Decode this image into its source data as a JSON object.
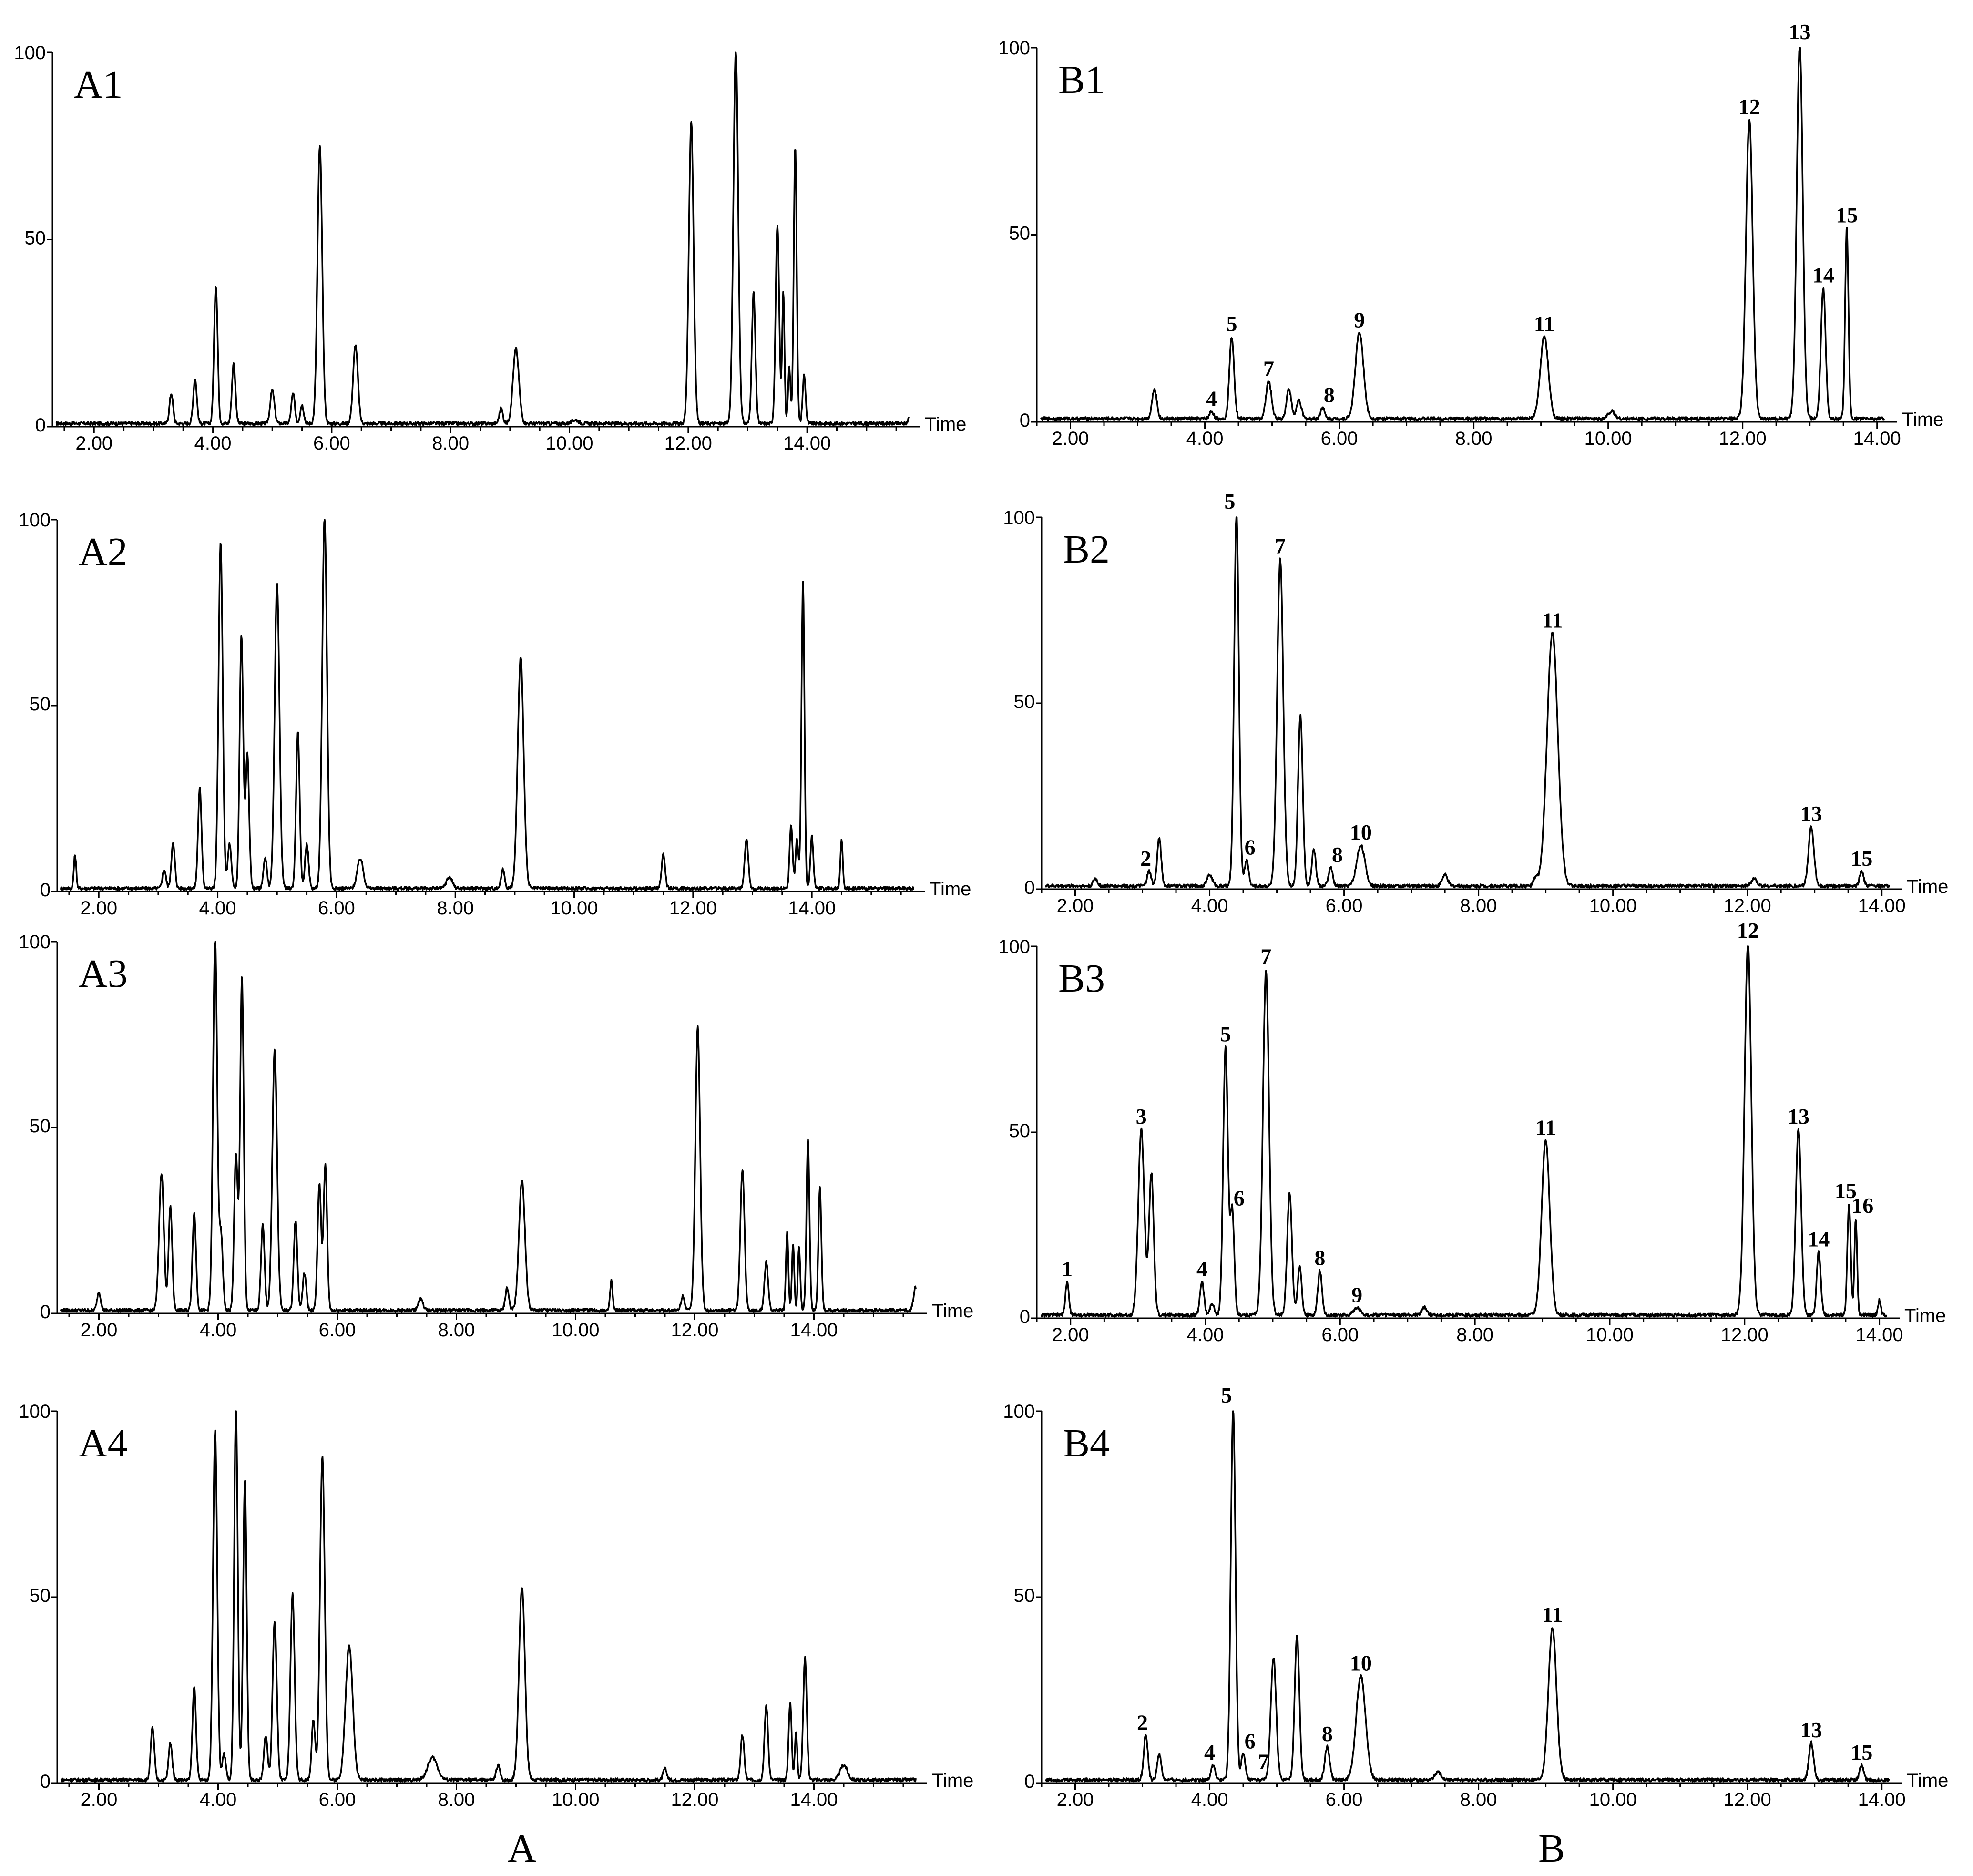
{
  "chart_data": [
    {
      "id": "A1",
      "type": "line",
      "title": "A1",
      "xlabel": "Time",
      "xlim": [
        1.3,
        15.9
      ],
      "ylim": [
        0,
        100
      ],
      "xticks": [
        "2.00",
        "4.00",
        "6.00",
        "8.00",
        "10.00",
        "12.00",
        "14.00"
      ],
      "yticks": [
        "0",
        "50",
        "100"
      ],
      "peaks": [
        [
          3.3,
          8,
          0.03
        ],
        [
          3.7,
          12,
          0.03
        ],
        [
          4.05,
          37,
          0.03
        ],
        [
          4.35,
          16,
          0.03
        ],
        [
          5.0,
          9,
          0.035
        ],
        [
          5.35,
          8,
          0.03
        ],
        [
          5.5,
          5,
          0.03
        ],
        [
          5.8,
          74,
          0.04
        ],
        [
          6.4,
          21,
          0.04
        ],
        [
          8.85,
          4,
          0.03
        ],
        [
          9.1,
          20,
          0.05
        ],
        [
          10.1,
          1,
          0.05
        ],
        [
          12.05,
          81,
          0.04
        ],
        [
          12.8,
          100,
          0.04
        ],
        [
          13.1,
          35,
          0.03
        ],
        [
          13.5,
          53,
          0.03
        ],
        [
          13.6,
          35,
          0.02
        ],
        [
          13.7,
          15,
          0.02
        ],
        [
          13.8,
          74,
          0.025
        ],
        [
          13.95,
          13,
          0.025
        ],
        [
          15.75,
          4,
          0.03
        ]
      ],
      "peak_labels": []
    },
    {
      "id": "A2",
      "type": "line",
      "title": "A2",
      "xlabel": "Time",
      "xlim": [
        1.3,
        15.9
      ],
      "ylim": [
        0,
        100
      ],
      "xticks": [
        "2.00",
        "4.00",
        "6.00",
        "8.00",
        "10.00",
        "12.00",
        "14.00"
      ],
      "yticks": [
        "0",
        "50",
        "100"
      ],
      "peaks": [
        [
          1.6,
          9,
          0.02
        ],
        [
          3.1,
          5,
          0.03
        ],
        [
          3.25,
          12,
          0.03
        ],
        [
          3.7,
          27,
          0.03
        ],
        [
          4.05,
          93,
          0.035
        ],
        [
          4.2,
          12,
          0.03
        ],
        [
          4.4,
          68,
          0.03
        ],
        [
          4.5,
          36,
          0.03
        ],
        [
          4.8,
          8,
          0.03
        ],
        [
          5.0,
          82,
          0.04
        ],
        [
          5.35,
          42,
          0.03
        ],
        [
          5.5,
          12,
          0.03
        ],
        [
          5.8,
          100,
          0.04
        ],
        [
          6.4,
          8,
          0.05
        ],
        [
          7.9,
          3,
          0.05
        ],
        [
          8.8,
          5,
          0.03
        ],
        [
          9.1,
          62,
          0.05
        ],
        [
          11.5,
          9,
          0.03
        ],
        [
          12.9,
          13,
          0.03
        ],
        [
          13.65,
          17,
          0.025
        ],
        [
          13.75,
          13,
          0.025
        ],
        [
          13.85,
          83,
          0.025
        ],
        [
          14.0,
          14,
          0.025
        ],
        [
          14.5,
          13,
          0.02
        ]
      ],
      "peak_labels": []
    },
    {
      "id": "A3",
      "type": "line",
      "title": "A3",
      "xlabel": "Time",
      "xlim": [
        1.3,
        15.9
      ],
      "ylim": [
        0,
        100
      ],
      "xticks": [
        "2.00",
        "4.00",
        "6.00",
        "8.00",
        "10.00",
        "12.00",
        "14.00"
      ],
      "yticks": [
        "0",
        "50",
        "100"
      ],
      "peaks": [
        [
          2.0,
          5,
          0.03
        ],
        [
          3.05,
          37,
          0.04
        ],
        [
          3.2,
          28,
          0.03
        ],
        [
          3.6,
          26,
          0.03
        ],
        [
          3.95,
          100,
          0.035
        ],
        [
          4.05,
          20,
          0.03
        ],
        [
          4.3,
          42,
          0.03
        ],
        [
          4.4,
          90,
          0.03
        ],
        [
          4.75,
          23,
          0.03
        ],
        [
          4.95,
          70,
          0.04
        ],
        [
          5.3,
          24,
          0.03
        ],
        [
          5.45,
          10,
          0.03
        ],
        [
          5.7,
          34,
          0.03
        ],
        [
          5.8,
          39,
          0.03
        ],
        [
          7.4,
          3,
          0.04
        ],
        [
          8.85,
          6,
          0.03
        ],
        [
          9.1,
          35,
          0.05
        ],
        [
          10.6,
          8,
          0.02
        ],
        [
          11.8,
          4,
          0.03
        ],
        [
          12.05,
          76,
          0.04
        ],
        [
          12.8,
          38,
          0.035
        ],
        [
          13.2,
          13,
          0.03
        ],
        [
          13.55,
          21,
          0.02
        ],
        [
          13.65,
          18,
          0.02
        ],
        [
          13.75,
          17,
          0.02
        ],
        [
          13.9,
          46,
          0.025
        ],
        [
          14.1,
          33,
          0.025
        ],
        [
          15.7,
          6,
          0.03
        ]
      ],
      "peak_labels": []
    },
    {
      "id": "A4",
      "type": "line",
      "title": "A4",
      "xlabel": "Time",
      "xlim": [
        1.3,
        15.9
      ],
      "ylim": [
        0,
        100
      ],
      "xticks": [
        "2.00",
        "4.00",
        "6.00",
        "8.00",
        "10.00",
        "12.00",
        "14.00"
      ],
      "yticks": [
        "0",
        "50",
        "100"
      ],
      "peaks": [
        [
          2.9,
          14,
          0.03
        ],
        [
          3.2,
          10,
          0.03
        ],
        [
          3.6,
          25,
          0.03
        ],
        [
          3.95,
          94,
          0.035
        ],
        [
          4.1,
          7,
          0.03
        ],
        [
          4.3,
          100,
          0.03
        ],
        [
          4.45,
          81,
          0.03
        ],
        [
          4.8,
          12,
          0.03
        ],
        [
          4.95,
          43,
          0.035
        ],
        [
          5.25,
          50,
          0.035
        ],
        [
          5.6,
          16,
          0.03
        ],
        [
          5.75,
          87,
          0.04
        ],
        [
          6.2,
          36,
          0.06
        ],
        [
          7.6,
          6,
          0.08
        ],
        [
          8.7,
          4,
          0.03
        ],
        [
          9.1,
          52,
          0.05
        ],
        [
          11.5,
          3,
          0.03
        ],
        [
          12.8,
          12,
          0.03
        ],
        [
          13.2,
          20,
          0.03
        ],
        [
          13.6,
          21,
          0.025
        ],
        [
          13.7,
          13,
          0.02
        ],
        [
          13.85,
          33,
          0.03
        ],
        [
          14.5,
          4,
          0.06
        ]
      ],
      "peak_labels": []
    },
    {
      "id": "B1",
      "type": "line",
      "title": "B1",
      "xlabel": "Time",
      "xlim": [
        1.5,
        14.3
      ],
      "ylim": [
        0,
        100
      ],
      "xticks": [
        "2.00",
        "4.00",
        "6.00",
        "8.00",
        "10.00",
        "12.00",
        "14.00"
      ],
      "yticks": [
        "0",
        "50",
        "100"
      ],
      "peaks": [
        [
          3.25,
          8,
          0.035
        ],
        [
          4.1,
          2,
          0.03
        ],
        [
          4.4,
          22,
          0.035
        ],
        [
          4.95,
          10,
          0.04
        ],
        [
          5.25,
          8,
          0.035
        ],
        [
          5.4,
          5,
          0.035
        ],
        [
          5.75,
          3,
          0.03
        ],
        [
          6.3,
          23,
          0.06
        ],
        [
          9.05,
          22,
          0.06
        ],
        [
          10.05,
          2,
          0.05
        ],
        [
          12.1,
          80,
          0.05
        ],
        [
          12.85,
          100,
          0.045
        ],
        [
          13.2,
          35,
          0.035
        ],
        [
          13.55,
          51,
          0.025
        ]
      ],
      "peak_labels": [
        [
          "4",
          4.1
        ],
        [
          "5",
          4.4
        ],
        [
          "7",
          4.95
        ],
        [
          "8",
          5.85
        ],
        [
          "9",
          6.3
        ],
        [
          "11",
          9.05
        ],
        [
          "12",
          12.1
        ],
        [
          "13",
          12.85
        ],
        [
          "14",
          13.2
        ],
        [
          "15",
          13.55
        ]
      ]
    },
    {
      "id": "B2",
      "type": "line",
      "title": "B2",
      "xlabel": "Time",
      "xlim": [
        1.5,
        14.3
      ],
      "ylim": [
        0,
        100
      ],
      "xticks": [
        "2.00",
        "4.00",
        "6.00",
        "8.00",
        "10.00",
        "12.00",
        "14.00"
      ],
      "yticks": [
        "0",
        "50",
        "100"
      ],
      "peaks": [
        [
          2.3,
          2,
          0.03
        ],
        [
          3.1,
          4,
          0.03
        ],
        [
          3.25,
          13,
          0.03
        ],
        [
          4.0,
          3,
          0.04
        ],
        [
          4.4,
          100,
          0.035
        ],
        [
          4.55,
          7,
          0.03
        ],
        [
          5.05,
          88,
          0.045
        ],
        [
          5.35,
          46,
          0.035
        ],
        [
          5.55,
          10,
          0.03
        ],
        [
          5.8,
          5,
          0.03
        ],
        [
          6.25,
          11,
          0.06
        ],
        [
          7.5,
          3,
          0.04
        ],
        [
          8.85,
          2,
          0.03
        ],
        [
          9.1,
          68,
          0.08
        ],
        [
          12.1,
          2,
          0.04
        ],
        [
          12.95,
          16,
          0.04
        ],
        [
          13.7,
          4,
          0.03
        ]
      ],
      "peak_labels": [
        [
          "2",
          3.05
        ],
        [
          "5",
          4.3
        ],
        [
          "6",
          4.6
        ],
        [
          "7",
          5.05
        ],
        [
          "8",
          5.9
        ],
        [
          "10",
          6.25
        ],
        [
          "11",
          9.1
        ],
        [
          "13",
          12.95
        ],
        [
          "15",
          13.7
        ]
      ]
    },
    {
      "id": "B3",
      "type": "line",
      "title": "B3",
      "xlabel": "Time",
      "xlim": [
        1.5,
        14.3
      ],
      "ylim": [
        0,
        100
      ],
      "xticks": [
        "2.00",
        "4.00",
        "6.00",
        "8.00",
        "10.00",
        "12.00",
        "14.00"
      ],
      "yticks": [
        "0",
        "50",
        "100"
      ],
      "peaks": [
        [
          1.95,
          9,
          0.025
        ],
        [
          3.05,
          50,
          0.045
        ],
        [
          3.2,
          38,
          0.035
        ],
        [
          3.95,
          9,
          0.03
        ],
        [
          4.1,
          3,
          0.03
        ],
        [
          4.3,
          72,
          0.035
        ],
        [
          4.4,
          28,
          0.03
        ],
        [
          4.9,
          93,
          0.045
        ],
        [
          5.25,
          33,
          0.035
        ],
        [
          5.4,
          13,
          0.03
        ],
        [
          5.7,
          12,
          0.03
        ],
        [
          6.25,
          2,
          0.05
        ],
        [
          7.25,
          2,
          0.04
        ],
        [
          9.05,
          47,
          0.06
        ],
        [
          12.05,
          100,
          0.05
        ],
        [
          12.8,
          50,
          0.04
        ],
        [
          13.1,
          17,
          0.03
        ],
        [
          13.55,
          30,
          0.025
        ],
        [
          13.65,
          26,
          0.02
        ],
        [
          14.0,
          4,
          0.02
        ]
      ],
      "peak_labels": [
        [
          "1",
          1.95
        ],
        [
          "3",
          3.05
        ],
        [
          "4",
          3.95
        ],
        [
          "5",
          4.3
        ],
        [
          "6",
          4.5
        ],
        [
          "7",
          4.9
        ],
        [
          "8",
          5.7
        ],
        [
          "9",
          6.25
        ],
        [
          "11",
          9.05
        ],
        [
          "12",
          12.05
        ],
        [
          "13",
          12.8
        ],
        [
          "14",
          13.1
        ],
        [
          "15",
          13.5
        ],
        [
          "16",
          13.75
        ]
      ]
    },
    {
      "id": "B4",
      "type": "line",
      "title": "B4",
      "xlabel": "Time",
      "xlim": [
        1.5,
        14.3
      ],
      "ylim": [
        0,
        100
      ],
      "xticks": [
        "2.00",
        "4.00",
        "6.00",
        "8.00",
        "10.00",
        "12.00",
        "14.00"
      ],
      "yticks": [
        "0",
        "50",
        "100"
      ],
      "peaks": [
        [
          3.05,
          12,
          0.03
        ],
        [
          3.25,
          7,
          0.03
        ],
        [
          4.05,
          4,
          0.03
        ],
        [
          4.35,
          100,
          0.035
        ],
        [
          4.5,
          7,
          0.03
        ],
        [
          4.95,
          33,
          0.04
        ],
        [
          5.3,
          39,
          0.035
        ],
        [
          5.75,
          9,
          0.035
        ],
        [
          6.25,
          28,
          0.07
        ],
        [
          7.4,
          2,
          0.05
        ],
        [
          9.1,
          41,
          0.06
        ],
        [
          12.95,
          10,
          0.035
        ],
        [
          13.7,
          4,
          0.03
        ]
      ],
      "peak_labels": [
        [
          "2",
          3.0
        ],
        [
          "4",
          4.0
        ],
        [
          "5",
          4.25
        ],
        [
          "6",
          4.6
        ],
        [
          "7",
          4.8
        ],
        [
          "8",
          5.75
        ],
        [
          "10",
          6.25
        ],
        [
          "11",
          9.1
        ],
        [
          "13",
          12.95
        ],
        [
          "15",
          13.7
        ]
      ]
    }
  ],
  "captions": {
    "left": "A",
    "right": "B"
  }
}
